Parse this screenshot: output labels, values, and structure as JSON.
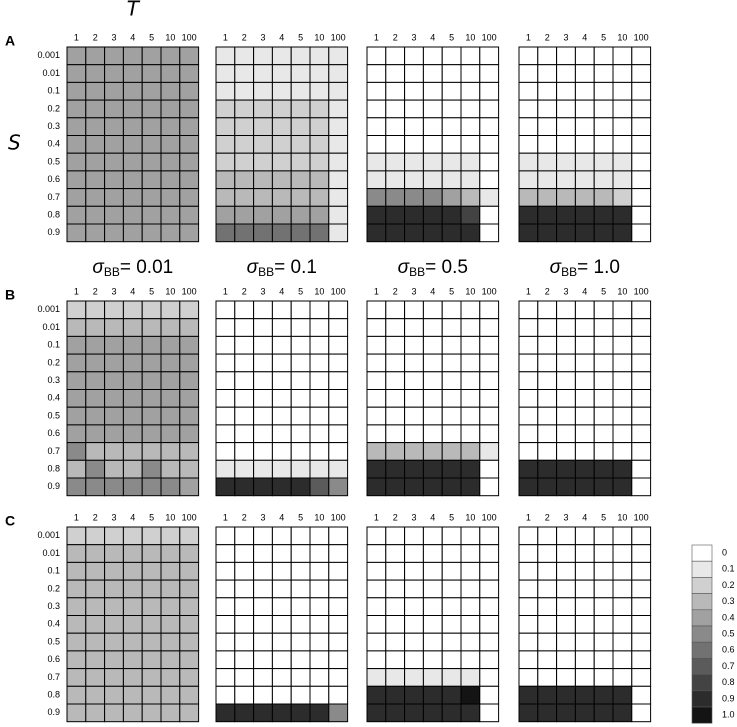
{
  "rows": [
    "A",
    "B",
    "C"
  ],
  "columns": [
    {
      "symbol": "σ",
      "sub": "BB",
      "text": "= 0.01"
    },
    {
      "symbol": "σ",
      "sub": "BB",
      "text": "= 0.1"
    },
    {
      "symbol": "σ",
      "sub": "BB",
      "text": "= 0.5"
    },
    {
      "symbol": "σ",
      "sub": "BB",
      "text": "= 1.0"
    }
  ],
  "colorbar": {
    "ticks": [
      0,
      0.1,
      0.2,
      0.3,
      0.4,
      0.5,
      0.6,
      0.7,
      0.8,
      0.9,
      {
        "value": 1,
        "label": "1.0"
      }
    ]
  },
  "chart_data": [
    {
      "type": "heatmap",
      "xlabel": "T",
      "ylabel": "S",
      "x": [
        "1",
        "2",
        "3",
        "4",
        "5",
        "10",
        "100"
      ],
      "y": [
        "0.001",
        "0.01",
        "0.1",
        "0.2",
        "0.3",
        "0.4",
        "0.5",
        "0.6",
        "0.7",
        "0.8",
        "0.9"
      ],
      "values": [
        [
          0.4,
          0.4,
          0.4,
          0.4,
          0.4,
          0.4,
          0.4
        ],
        [
          0.4,
          0.4,
          0.4,
          0.4,
          0.4,
          0.4,
          0.4
        ],
        [
          0.4,
          0.4,
          0.4,
          0.4,
          0.4,
          0.4,
          0.4
        ],
        [
          0.4,
          0.4,
          0.4,
          0.4,
          0.4,
          0.4,
          0.4
        ],
        [
          0.4,
          0.4,
          0.4,
          0.4,
          0.4,
          0.4,
          0.4
        ],
        [
          0.4,
          0.4,
          0.4,
          0.4,
          0.4,
          0.4,
          0.4
        ],
        [
          0.4,
          0.4,
          0.4,
          0.4,
          0.4,
          0.4,
          0.4
        ],
        [
          0.4,
          0.4,
          0.4,
          0.4,
          0.4,
          0.4,
          0.4
        ],
        [
          0.4,
          0.4,
          0.4,
          0.4,
          0.4,
          0.4,
          0.4
        ],
        [
          0.4,
          0.4,
          0.4,
          0.4,
          0.4,
          0.4,
          0.4
        ],
        [
          0.4,
          0.4,
          0.4,
          0.4,
          0.4,
          0.4,
          0.4
        ]
      ]
    },
    {
      "type": "heatmap",
      "x": [
        "1",
        "2",
        "3",
        "4",
        "5",
        "10",
        "100"
      ],
      "values": [
        [
          0.1,
          0.1,
          0.1,
          0.1,
          0.1,
          0.1,
          0.1
        ],
        [
          0.1,
          0.1,
          0.1,
          0.1,
          0.1,
          0.1,
          0.1
        ],
        [
          0.1,
          0.1,
          0.1,
          0.1,
          0.1,
          0.1,
          0.1
        ],
        [
          0.2,
          0.2,
          0.2,
          0.2,
          0.2,
          0.2,
          0.1
        ],
        [
          0.2,
          0.2,
          0.2,
          0.2,
          0.2,
          0.2,
          0.1
        ],
        [
          0.2,
          0.2,
          0.2,
          0.2,
          0.2,
          0.2,
          0.1
        ],
        [
          0.2,
          0.2,
          0.2,
          0.2,
          0.2,
          0.2,
          0.1
        ],
        [
          0.3,
          0.3,
          0.3,
          0.3,
          0.3,
          0.3,
          0.1
        ],
        [
          0.3,
          0.3,
          0.3,
          0.3,
          0.3,
          0.3,
          0.1
        ],
        [
          0.4,
          0.4,
          0.4,
          0.4,
          0.4,
          0.4,
          0.1
        ],
        [
          0.6,
          0.6,
          0.6,
          0.6,
          0.6,
          0.6,
          0.1
        ]
      ]
    },
    {
      "type": "heatmap",
      "x": [
        "1",
        "2",
        "3",
        "4",
        "5",
        "10",
        "100"
      ],
      "values": [
        [
          0,
          0,
          0,
          0,
          0,
          0,
          0
        ],
        [
          0,
          0,
          0,
          0,
          0,
          0,
          0
        ],
        [
          0,
          0,
          0,
          0,
          0,
          0,
          0
        ],
        [
          0,
          0,
          0,
          0,
          0,
          0,
          0
        ],
        [
          0,
          0,
          0,
          0,
          0,
          0,
          0
        ],
        [
          0,
          0,
          0,
          0,
          0,
          0,
          0
        ],
        [
          0.1,
          0.1,
          0.1,
          0.1,
          0.1,
          0.1,
          0
        ],
        [
          0.1,
          0.1,
          0.1,
          0.1,
          0.1,
          0.1,
          0
        ],
        [
          0.5,
          0.5,
          0.5,
          0.5,
          0.4,
          0.3,
          0.1
        ],
        [
          0.9,
          0.9,
          0.9,
          0.9,
          0.9,
          0.8,
          0
        ],
        [
          0.9,
          0.9,
          0.9,
          0.9,
          0.9,
          0.9,
          0
        ]
      ]
    },
    {
      "type": "heatmap",
      "x": [
        "1",
        "2",
        "3",
        "4",
        "5",
        "10",
        "100"
      ],
      "values": [
        [
          0,
          0,
          0,
          0,
          0,
          0,
          0
        ],
        [
          0,
          0,
          0,
          0,
          0,
          0,
          0
        ],
        [
          0,
          0,
          0,
          0,
          0,
          0,
          0
        ],
        [
          0,
          0,
          0,
          0,
          0,
          0,
          0
        ],
        [
          0,
          0,
          0,
          0,
          0,
          0,
          0
        ],
        [
          0,
          0,
          0,
          0,
          0,
          0,
          0
        ],
        [
          0.1,
          0.1,
          0.1,
          0.1,
          0.1,
          0.1,
          0
        ],
        [
          0.1,
          0.1,
          0.1,
          0.1,
          0.1,
          0.1,
          0
        ],
        [
          0.3,
          0.3,
          0.3,
          0.3,
          0.3,
          0.2,
          0
        ],
        [
          0.9,
          0.9,
          0.9,
          0.9,
          0.9,
          0.9,
          0
        ],
        [
          0.9,
          0.9,
          0.9,
          0.9,
          0.9,
          0.9,
          0
        ]
      ]
    },
    {
      "type": "heatmap",
      "x": [
        "1",
        "2",
        "3",
        "4",
        "5",
        "10",
        "100"
      ],
      "y": [
        "0.001",
        "0.01",
        "0.1",
        "0.2",
        "0.3",
        "0.4",
        "0.5",
        "0.6",
        "0.7",
        "0.8",
        "0.9"
      ],
      "values": [
        [
          0.2,
          0.2,
          0.2,
          0.2,
          0.2,
          0.2,
          0.2
        ],
        [
          0.3,
          0.3,
          0.3,
          0.3,
          0.3,
          0.3,
          0.3
        ],
        [
          0.4,
          0.4,
          0.4,
          0.4,
          0.4,
          0.4,
          0.4
        ],
        [
          0.4,
          0.4,
          0.4,
          0.4,
          0.4,
          0.4,
          0.4
        ],
        [
          0.4,
          0.4,
          0.4,
          0.4,
          0.4,
          0.4,
          0.4
        ],
        [
          0.4,
          0.4,
          0.4,
          0.4,
          0.4,
          0.4,
          0.4
        ],
        [
          0.4,
          0.4,
          0.4,
          0.4,
          0.4,
          0.4,
          0.4
        ],
        [
          0.4,
          0.4,
          0.4,
          0.4,
          0.4,
          0.4,
          0.4
        ],
        [
          0.5,
          0.3,
          0.3,
          0.3,
          0.3,
          0.3,
          0.3
        ],
        [
          0.3,
          0.5,
          0.3,
          0.3,
          0.5,
          0.3,
          0.3
        ],
        [
          0.5,
          0.5,
          0.5,
          0.5,
          0.5,
          0.5,
          0.4
        ]
      ]
    },
    {
      "type": "heatmap",
      "x": [
        "1",
        "2",
        "3",
        "4",
        "5",
        "10",
        "100"
      ],
      "values": [
        [
          0,
          0,
          0,
          0,
          0,
          0,
          0
        ],
        [
          0,
          0,
          0,
          0,
          0,
          0,
          0
        ],
        [
          0,
          0,
          0,
          0,
          0,
          0,
          0
        ],
        [
          0,
          0,
          0,
          0,
          0,
          0,
          0
        ],
        [
          0,
          0,
          0,
          0,
          0,
          0,
          0
        ],
        [
          0,
          0,
          0,
          0,
          0,
          0,
          0
        ],
        [
          0,
          0,
          0,
          0,
          0,
          0,
          0
        ],
        [
          0,
          0,
          0,
          0,
          0,
          0,
          0
        ],
        [
          0,
          0,
          0,
          0,
          0,
          0,
          0
        ],
        [
          0.1,
          0.1,
          0.1,
          0.1,
          0.1,
          0.1,
          0.1
        ],
        [
          0.9,
          0.9,
          0.9,
          0.9,
          0.9,
          0.7,
          0.5
        ]
      ]
    },
    {
      "type": "heatmap",
      "x": [
        "1",
        "2",
        "3",
        "4",
        "5",
        "10",
        "100"
      ],
      "values": [
        [
          0,
          0,
          0,
          0,
          0,
          0,
          0
        ],
        [
          0,
          0,
          0,
          0,
          0,
          0,
          0
        ],
        [
          0,
          0,
          0,
          0,
          0,
          0,
          0
        ],
        [
          0,
          0,
          0,
          0,
          0,
          0,
          0
        ],
        [
          0,
          0,
          0,
          0,
          0,
          0,
          0
        ],
        [
          0,
          0,
          0,
          0,
          0,
          0,
          0
        ],
        [
          0,
          0,
          0,
          0,
          0,
          0,
          0
        ],
        [
          0,
          0,
          0,
          0,
          0,
          0,
          0
        ],
        [
          0.3,
          0.3,
          0.3,
          0.3,
          0.3,
          0.3,
          0.1
        ],
        [
          0.9,
          0.9,
          0.9,
          0.9,
          0.9,
          0.9,
          0
        ],
        [
          0.9,
          0.9,
          0.9,
          0.9,
          0.9,
          0.9,
          0
        ]
      ]
    },
    {
      "type": "heatmap",
      "x": [
        "1",
        "2",
        "3",
        "4",
        "5",
        "10",
        "100"
      ],
      "values": [
        [
          0,
          0,
          0,
          0,
          0,
          0,
          0
        ],
        [
          0,
          0,
          0,
          0,
          0,
          0,
          0
        ],
        [
          0,
          0,
          0,
          0,
          0,
          0,
          0
        ],
        [
          0,
          0,
          0,
          0,
          0,
          0,
          0
        ],
        [
          0,
          0,
          0,
          0,
          0,
          0,
          0
        ],
        [
          0,
          0,
          0,
          0,
          0,
          0,
          0
        ],
        [
          0,
          0,
          0,
          0,
          0,
          0,
          0
        ],
        [
          0,
          0,
          0,
          0,
          0,
          0,
          0
        ],
        [
          0,
          0,
          0,
          0,
          0,
          0,
          0
        ],
        [
          0.9,
          0.9,
          0.9,
          0.9,
          0.9,
          0.9,
          0
        ],
        [
          0.9,
          0.9,
          0.9,
          0.9,
          0.9,
          0.9,
          0
        ]
      ]
    },
    {
      "type": "heatmap",
      "x": [
        "1",
        "2",
        "3",
        "4",
        "5",
        "10",
        "100"
      ],
      "y": [
        "0.001",
        "0.01",
        "0.1",
        "0.2",
        "0.3",
        "0.4",
        "0.5",
        "0.6",
        "0.7",
        "0.8",
        "0.9"
      ],
      "values": [
        [
          0.2,
          0.2,
          0.2,
          0.2,
          0.2,
          0.2,
          0.2
        ],
        [
          0.3,
          0.3,
          0.3,
          0.3,
          0.3,
          0.3,
          0.3
        ],
        [
          0.3,
          0.3,
          0.3,
          0.3,
          0.3,
          0.3,
          0.3
        ],
        [
          0.3,
          0.3,
          0.3,
          0.3,
          0.3,
          0.3,
          0.3
        ],
        [
          0.3,
          0.3,
          0.3,
          0.3,
          0.3,
          0.3,
          0.3
        ],
        [
          0.3,
          0.3,
          0.3,
          0.3,
          0.3,
          0.3,
          0.3
        ],
        [
          0.3,
          0.3,
          0.3,
          0.3,
          0.3,
          0.3,
          0.3
        ],
        [
          0.3,
          0.3,
          0.3,
          0.3,
          0.3,
          0.3,
          0.3
        ],
        [
          0.3,
          0.3,
          0.3,
          0.3,
          0.3,
          0.3,
          0.3
        ],
        [
          0.3,
          0.3,
          0.3,
          0.3,
          0.3,
          0.3,
          0.3
        ],
        [
          0.3,
          0.3,
          0.3,
          0.3,
          0.3,
          0.3,
          0.3
        ]
      ]
    },
    {
      "type": "heatmap",
      "x": [
        "1",
        "2",
        "3",
        "4",
        "5",
        "10",
        "100"
      ],
      "values": [
        [
          0,
          0,
          0,
          0,
          0,
          0,
          0
        ],
        [
          0,
          0,
          0,
          0,
          0,
          0,
          0
        ],
        [
          0,
          0,
          0,
          0,
          0,
          0,
          0
        ],
        [
          0,
          0,
          0,
          0,
          0,
          0,
          0
        ],
        [
          0,
          0,
          0,
          0,
          0,
          0,
          0
        ],
        [
          0,
          0,
          0,
          0,
          0,
          0,
          0
        ],
        [
          0,
          0,
          0,
          0,
          0,
          0,
          0
        ],
        [
          0,
          0,
          0,
          0,
          0,
          0,
          0
        ],
        [
          0,
          0,
          0,
          0,
          0,
          0,
          0
        ],
        [
          0,
          0,
          0,
          0,
          0,
          0,
          0
        ],
        [
          0.9,
          0.9,
          0.9,
          0.9,
          0.9,
          0.9,
          0.5
        ]
      ]
    },
    {
      "type": "heatmap",
      "x": [
        "1",
        "2",
        "3",
        "4",
        "5",
        "10",
        "100"
      ],
      "values": [
        [
          0,
          0,
          0,
          0,
          0,
          0,
          0
        ],
        [
          0,
          0,
          0,
          0,
          0,
          0,
          0
        ],
        [
          0,
          0,
          0,
          0,
          0,
          0,
          0
        ],
        [
          0,
          0,
          0,
          0,
          0,
          0,
          0
        ],
        [
          0,
          0,
          0,
          0,
          0,
          0,
          0
        ],
        [
          0,
          0,
          0,
          0,
          0,
          0,
          0
        ],
        [
          0,
          0,
          0,
          0,
          0,
          0,
          0
        ],
        [
          0,
          0,
          0,
          0,
          0,
          0,
          0
        ],
        [
          0.1,
          0.1,
          0.1,
          0.1,
          0.1,
          0.1,
          0
        ],
        [
          0.9,
          0.9,
          0.9,
          0.9,
          0.9,
          1,
          0
        ],
        [
          0.9,
          0.9,
          0.9,
          0.9,
          0.9,
          0.9,
          0
        ]
      ]
    },
    {
      "type": "heatmap",
      "x": [
        "1",
        "2",
        "3",
        "4",
        "5",
        "10",
        "100"
      ],
      "values": [
        [
          0,
          0,
          0,
          0,
          0,
          0,
          0
        ],
        [
          0,
          0,
          0,
          0,
          0,
          0,
          0
        ],
        [
          0,
          0,
          0,
          0,
          0,
          0,
          0
        ],
        [
          0,
          0,
          0,
          0,
          0,
          0,
          0
        ],
        [
          0,
          0,
          0,
          0,
          0,
          0,
          0
        ],
        [
          0,
          0,
          0,
          0,
          0,
          0,
          0
        ],
        [
          0,
          0,
          0,
          0,
          0,
          0,
          0
        ],
        [
          0,
          0,
          0,
          0,
          0,
          0,
          0
        ],
        [
          0,
          0,
          0,
          0,
          0,
          0,
          0
        ],
        [
          0.9,
          0.9,
          0.9,
          0.9,
          0.9,
          0.9,
          0
        ],
        [
          0.9,
          0.9,
          0.9,
          0.9,
          0.9,
          0.9,
          0
        ]
      ]
    }
  ]
}
